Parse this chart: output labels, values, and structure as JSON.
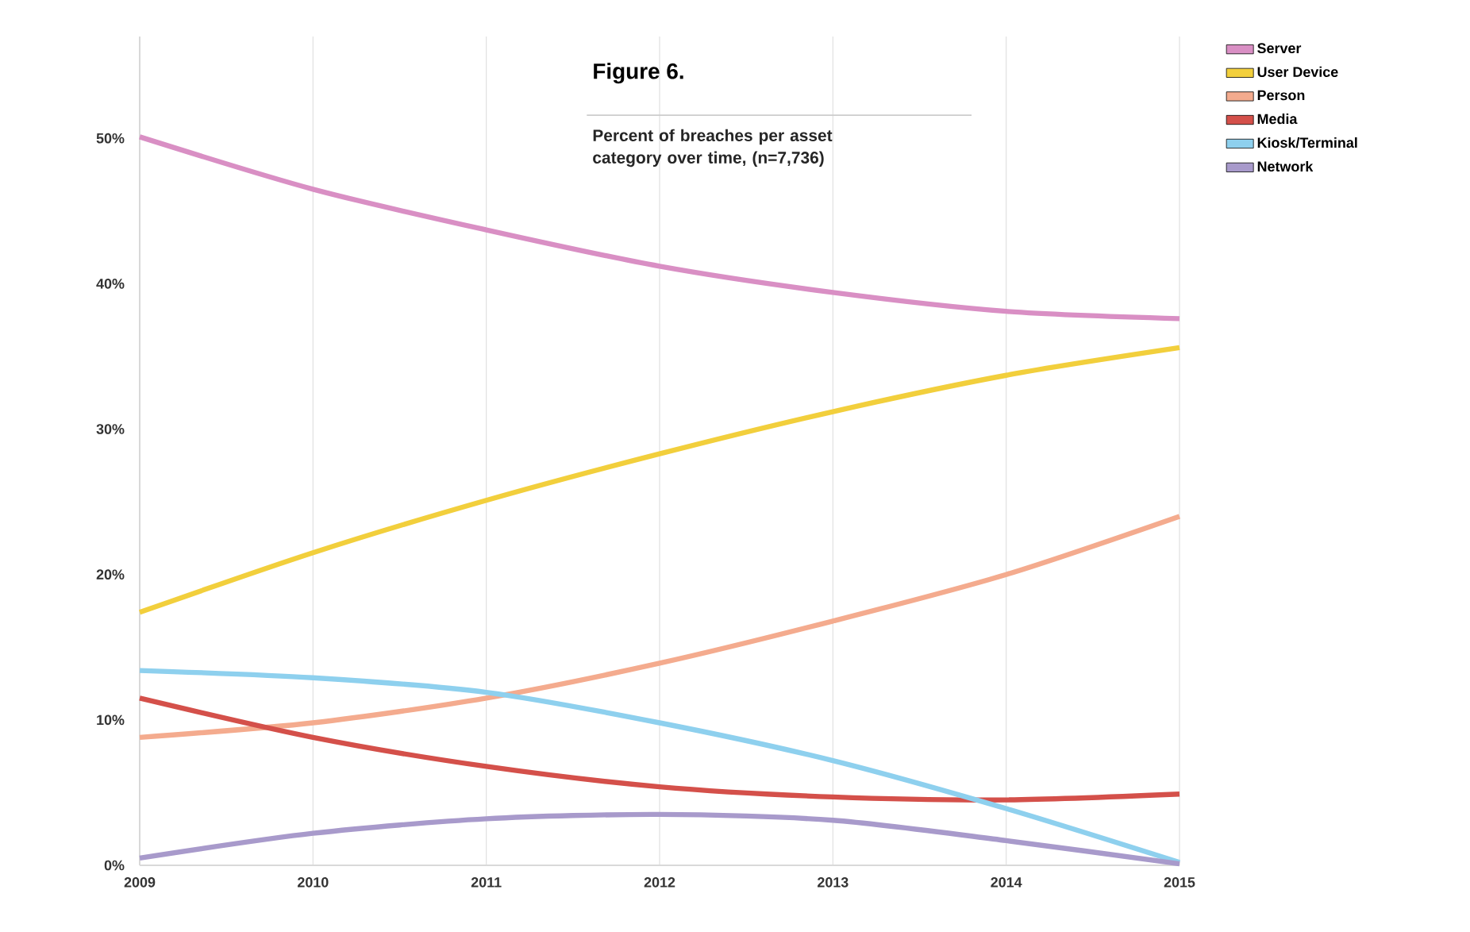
{
  "chart_data": {
    "type": "line",
    "title": "Figure 6.",
    "subtitle": "Percent of breaches per asset category over time, (n=7,736)",
    "x": [
      2009,
      2010,
      2011,
      2012,
      2013,
      2014,
      2015
    ],
    "xlim": [
      2009,
      2015
    ],
    "xticks": [
      2009,
      2010,
      2011,
      2012,
      2013,
      2014,
      2015
    ],
    "ylim": [
      0,
      57
    ],
    "yticks": [
      {
        "value": 0,
        "label": "0%"
      },
      {
        "value": 10,
        "label": "10%"
      },
      {
        "value": 20,
        "label": "20%"
      },
      {
        "value": 30,
        "label": "30%"
      },
      {
        "value": 40,
        "label": "40%"
      },
      {
        "value": 50,
        "label": "50%"
      }
    ],
    "grid": "x",
    "legend": "right",
    "marker": "none",
    "line_style": "solid",
    "series": [
      {
        "name": "Server",
        "color": "#d98fc4",
        "values": [
          50.1,
          46.5,
          43.7,
          41.2,
          39.4,
          38.1,
          37.6
        ]
      },
      {
        "name": "User Device",
        "color": "#f2cf3c",
        "values": [
          17.4,
          21.5,
          25.1,
          28.3,
          31.2,
          33.7,
          35.6
        ]
      },
      {
        "name": "Person",
        "color": "#f4ab8e",
        "values": [
          8.8,
          9.8,
          11.5,
          13.9,
          16.8,
          20.0,
          24.0
        ]
      },
      {
        "name": "Media",
        "color": "#d4504a",
        "values": [
          11.5,
          8.8,
          6.8,
          5.4,
          4.7,
          4.5,
          4.9
        ]
      },
      {
        "name": "Kiosk/Terminal",
        "color": "#8ed0ee",
        "values": [
          13.4,
          12.9,
          11.9,
          9.8,
          7.2,
          3.9,
          0.2
        ]
      },
      {
        "name": "Network",
        "color": "#a89acb",
        "values": [
          0.5,
          2.2,
          3.2,
          3.5,
          3.1,
          1.7,
          0.1
        ]
      }
    ]
  }
}
